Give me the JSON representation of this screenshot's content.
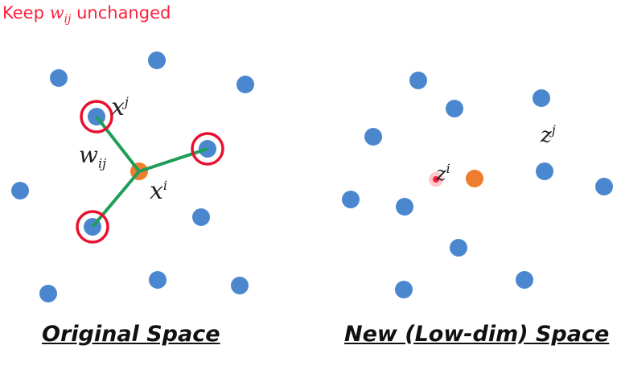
{
  "header": {
    "prefix": "Keep",
    "symbol": "w",
    "subscript": "ij",
    "suffix": "unchanged",
    "color": "#ff1f3d"
  },
  "left_panel": {
    "caption": "Original Space",
    "labels": {
      "xj_base": "x",
      "xj_sup": "j",
      "w_base": "w",
      "w_sub": "ij",
      "xi_base": "x",
      "xi_sup": "i"
    },
    "dot_count": 13,
    "highlighted_neighbors": 3
  },
  "right_panel": {
    "caption": "New (Low-dim) Space",
    "labels": {
      "zi_base": "z",
      "zi_sup": "i",
      "zj_base": "z",
      "zj_sup": "j"
    },
    "dot_count": 14
  },
  "colors": {
    "point": "#4a87cf",
    "center": "#ef7d2e",
    "ring": "#e8102f",
    "edge": "#1f9e5a",
    "pointer": "#ff1f3d"
  }
}
